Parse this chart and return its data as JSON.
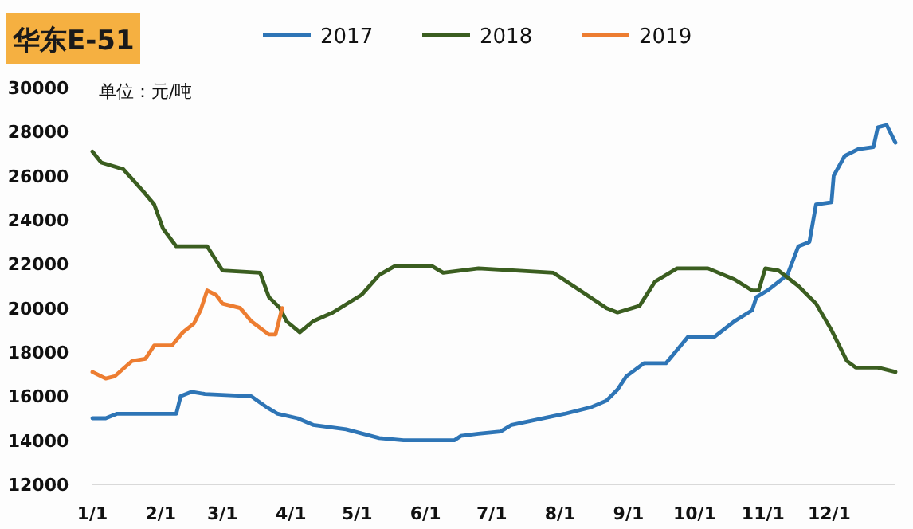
{
  "chart_data": {
    "type": "line",
    "title": "华东E-51",
    "annotations": [
      "单位：元/吨"
    ],
    "legend": "top",
    "grid": false,
    "xlim": [
      "--01-01",
      "--12-31"
    ],
    "xticks": [
      {
        "value": "--01-01",
        "label": "1/1"
      },
      {
        "value": "--02-01",
        "label": "2/1"
      },
      {
        "value": "--03-01",
        "label": "3/1"
      },
      {
        "value": "--04-01",
        "label": "4/1"
      },
      {
        "value": "--05-01",
        "label": "5/1"
      },
      {
        "value": "--06-01",
        "label": "6/1"
      },
      {
        "value": "--07-01",
        "label": "7/1"
      },
      {
        "value": "--08-01",
        "label": "8/1"
      },
      {
        "value": "--09-01",
        "label": "9/1"
      },
      {
        "value": "--10-01",
        "label": "10/1"
      },
      {
        "value": "--11-01",
        "label": "11/1"
      },
      {
        "value": "--12-01",
        "label": "12/1"
      }
    ],
    "ylim": [
      12000,
      30000
    ],
    "yticks": [
      12000,
      14000,
      16000,
      18000,
      20000,
      22000,
      24000,
      26000,
      28000,
      30000
    ],
    "series": [
      {
        "name": "2017",
        "color": "#2e75b6",
        "x": [
          "--01-01",
          "--01-07",
          "--01-12",
          "--02-08",
          "--02-10",
          "--02-15",
          "--02-21",
          "--03-14",
          "--03-21",
          "--03-26",
          "--04-04",
          "--04-11",
          "--04-26",
          "--05-11",
          "--05-22",
          "--06-14",
          "--06-17",
          "--06-25",
          "--07-05",
          "--07-10",
          "--08-03",
          "--08-15",
          "--08-22",
          "--08-27",
          "--08-31",
          "--09-08",
          "--09-18",
          "--09-23",
          "--09-28",
          "--10-10",
          "--10-19",
          "--10-27",
          "--10-29",
          "--11-03",
          "--11-12",
          "--11-17",
          "--11-22",
          "--11-25",
          "--12-02",
          "--12-03",
          "--12-08",
          "--12-14",
          "--12-21",
          "--12-23",
          "--12-27",
          "--12-31"
        ],
        "values": [
          15000,
          15000,
          15200,
          15200,
          16000,
          16200,
          16100,
          16000,
          15500,
          15200,
          15000,
          14700,
          14500,
          14100,
          14000,
          14000,
          14200,
          14300,
          14400,
          14700,
          15200,
          15500,
          15800,
          16300,
          16900,
          17500,
          17500,
          18100,
          18700,
          18700,
          19400,
          19900,
          20500,
          20800,
          21500,
          22800,
          23000,
          24700,
          24800,
          26000,
          26900,
          27200,
          27300,
          28200,
          28300,
          27500
        ]
      },
      {
        "name": "2018",
        "color": "#3b5e20",
        "x": [
          "--01-01",
          "--01-05",
          "--01-15",
          "--01-24",
          "--01-29",
          "--02-02",
          "--02-08",
          "--02-22",
          "--03-01",
          "--03-18",
          "--03-22",
          "--03-27",
          "--03-30",
          "--04-05",
          "--04-11",
          "--04-20",
          "--05-03",
          "--05-11",
          "--05-18",
          "--06-04",
          "--06-09",
          "--06-25",
          "--07-29",
          "--08-10",
          "--08-22",
          "--08-27",
          "--09-06",
          "--09-13",
          "--09-23",
          "--10-07",
          "--10-19",
          "--10-27",
          "--10-30",
          "--11-02",
          "--11-08",
          "--11-17",
          "--11-25",
          "--12-02",
          "--12-09",
          "--12-13",
          "--12-23",
          "--12-31"
        ],
        "values": [
          27100,
          26600,
          26300,
          25300,
          24700,
          23600,
          22800,
          22800,
          21700,
          21600,
          20500,
          20000,
          19400,
          18900,
          19400,
          19800,
          20600,
          21500,
          21900,
          21900,
          21600,
          21800,
          21600,
          20800,
          20000,
          19800,
          20100,
          21200,
          21800,
          21800,
          21300,
          20800,
          20800,
          21800,
          21700,
          21000,
          20200,
          19000,
          17600,
          17300,
          17300,
          17100
        ]
      },
      {
        "name": "2019",
        "color": "#ed7d31",
        "x": [
          "--01-01",
          "--01-07",
          "--01-11",
          "--01-19",
          "--01-25",
          "--01-29",
          "--02-06",
          "--02-11",
          "--02-16",
          "--02-19",
          "--02-22",
          "--02-26",
          "--03-01",
          "--03-09",
          "--03-14",
          "--03-22",
          "--03-25",
          "--03-28"
        ],
        "values": [
          17100,
          16800,
          16900,
          17600,
          17700,
          18300,
          18300,
          18900,
          19300,
          19900,
          20800,
          20600,
          20200,
          20000,
          19400,
          18800,
          18800,
          20000
        ]
      }
    ]
  }
}
